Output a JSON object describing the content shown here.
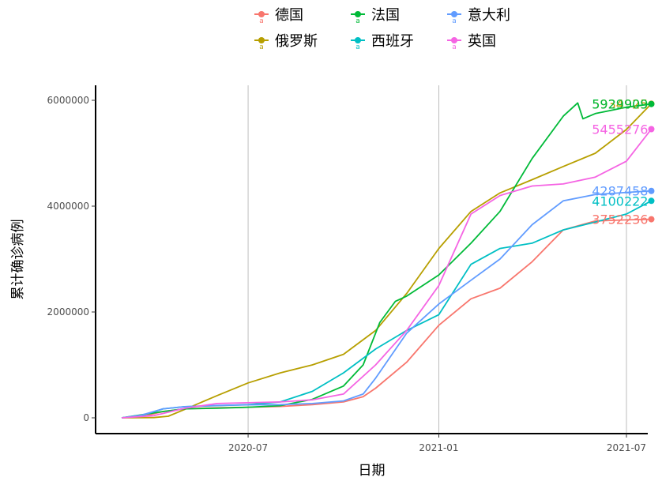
{
  "chart_data": {
    "type": "line",
    "xlabel": "日期",
    "ylabel": "累计确诊病例",
    "x_ticks": [
      "2020-07",
      "2021-01",
      "2021-07"
    ],
    "y_ticks": [
      "0",
      "2000000",
      "4000000",
      "6000000"
    ],
    "ylim": [
      -250000,
      6300000
    ],
    "grid": "vertical major lines only",
    "legend_position": "top",
    "series": [
      {
        "name": "德国",
        "color": "#F8766D",
        "end_label": "3752236",
        "points": [
          [
            "2020-03-01",
            0
          ],
          [
            "2020-03-20",
            20000
          ],
          [
            "2020-04-10",
            120000
          ],
          [
            "2020-05-01",
            170000
          ],
          [
            "2020-06-01",
            190000
          ],
          [
            "2020-07-01",
            200000
          ],
          [
            "2020-08-01",
            215000
          ],
          [
            "2020-09-01",
            250000
          ],
          [
            "2020-10-01",
            300000
          ],
          [
            "2020-10-20",
            400000
          ],
          [
            "2020-11-01",
            560000
          ],
          [
            "2020-12-01",
            1050000
          ],
          [
            "2021-01-01",
            1750000
          ],
          [
            "2021-02-01",
            2250000
          ],
          [
            "2021-03-01",
            2450000
          ],
          [
            "2021-04-01",
            2950000
          ],
          [
            "2021-05-01",
            3550000
          ],
          [
            "2021-06-01",
            3720000
          ],
          [
            "2021-07-01",
            3740000
          ],
          [
            "2021-07-25",
            3752236
          ]
        ]
      },
      {
        "name": "俄罗斯",
        "color": "#B79F00",
        "end_label": "5934925",
        "points": [
          [
            "2020-03-01",
            0
          ],
          [
            "2020-04-01",
            5000
          ],
          [
            "2020-04-15",
            30000
          ],
          [
            "2020-05-01",
            160000
          ],
          [
            "2020-06-01",
            420000
          ],
          [
            "2020-07-01",
            660000
          ],
          [
            "2020-08-01",
            850000
          ],
          [
            "2020-09-01",
            1000000
          ],
          [
            "2020-10-01",
            1200000
          ],
          [
            "2020-11-01",
            1650000
          ],
          [
            "2020-12-01",
            2350000
          ],
          [
            "2021-01-01",
            3200000
          ],
          [
            "2021-02-01",
            3900000
          ],
          [
            "2021-03-01",
            4250000
          ],
          [
            "2021-04-01",
            4500000
          ],
          [
            "2021-05-01",
            4750000
          ],
          [
            "2021-06-01",
            5000000
          ],
          [
            "2021-07-01",
            5450000
          ],
          [
            "2021-07-25",
            5934925
          ]
        ]
      },
      {
        "name": "法国",
        "color": "#00BA38",
        "end_label": "5929909",
        "points": [
          [
            "2020-03-01",
            0
          ],
          [
            "2020-04-10",
            120000
          ],
          [
            "2020-05-01",
            170000
          ],
          [
            "2020-06-01",
            180000
          ],
          [
            "2020-07-01",
            200000
          ],
          [
            "2020-08-01",
            230000
          ],
          [
            "2020-09-01",
            350000
          ],
          [
            "2020-10-01",
            600000
          ],
          [
            "2020-10-20",
            1000000
          ],
          [
            "2020-11-05",
            1800000
          ],
          [
            "2020-11-20",
            2200000
          ],
          [
            "2020-12-01",
            2300000
          ],
          [
            "2021-01-01",
            2700000
          ],
          [
            "2021-02-01",
            3300000
          ],
          [
            "2021-03-01",
            3900000
          ],
          [
            "2021-04-01",
            4900000
          ],
          [
            "2021-05-01",
            5700000
          ],
          [
            "2021-05-15",
            5950000
          ],
          [
            "2021-05-20",
            5650000
          ],
          [
            "2021-06-01",
            5750000
          ],
          [
            "2021-07-01",
            5870000
          ],
          [
            "2021-07-25",
            5929909
          ]
        ]
      },
      {
        "name": "西班牙",
        "color": "#00BFC4",
        "end_label": "4100222",
        "points": [
          [
            "2020-03-01",
            0
          ],
          [
            "2020-03-20",
            40000
          ],
          [
            "2020-04-10",
            170000
          ],
          [
            "2020-05-01",
            210000
          ],
          [
            "2020-06-01",
            230000
          ],
          [
            "2020-07-01",
            250000
          ],
          [
            "2020-08-01",
            300000
          ],
          [
            "2020-09-01",
            500000
          ],
          [
            "2020-10-01",
            850000
          ],
          [
            "2020-11-01",
            1300000
          ],
          [
            "2020-12-01",
            1650000
          ],
          [
            "2021-01-01",
            1950000
          ],
          [
            "2021-02-01",
            2900000
          ],
          [
            "2021-03-01",
            3200000
          ],
          [
            "2021-04-01",
            3300000
          ],
          [
            "2021-05-01",
            3550000
          ],
          [
            "2021-06-01",
            3700000
          ],
          [
            "2021-07-01",
            3850000
          ],
          [
            "2021-07-25",
            4100222
          ]
        ]
      },
      {
        "name": "意大利",
        "color": "#619CFF",
        "end_label": "4287458",
        "points": [
          [
            "2020-03-01",
            0
          ],
          [
            "2020-03-20",
            50000
          ],
          [
            "2020-04-10",
            170000
          ],
          [
            "2020-05-01",
            210000
          ],
          [
            "2020-06-01",
            235000
          ],
          [
            "2020-07-01",
            245000
          ],
          [
            "2020-08-01",
            250000
          ],
          [
            "2020-09-01",
            270000
          ],
          [
            "2020-10-01",
            320000
          ],
          [
            "2020-10-20",
            450000
          ],
          [
            "2020-11-01",
            750000
          ],
          [
            "2020-12-01",
            1600000
          ],
          [
            "2021-01-01",
            2150000
          ],
          [
            "2021-02-01",
            2600000
          ],
          [
            "2021-03-01",
            3000000
          ],
          [
            "2021-04-01",
            3650000
          ],
          [
            "2021-05-01",
            4100000
          ],
          [
            "2021-06-01",
            4220000
          ],
          [
            "2021-07-01",
            4260000
          ],
          [
            "2021-07-25",
            4287458
          ]
        ]
      },
      {
        "name": "英国",
        "color": "#F564E3",
        "end_label": "5455276",
        "points": [
          [
            "2020-03-01",
            0
          ],
          [
            "2020-04-01",
            40000
          ],
          [
            "2020-05-01",
            180000
          ],
          [
            "2020-06-01",
            270000
          ],
          [
            "2020-07-01",
            285000
          ],
          [
            "2020-08-01",
            300000
          ],
          [
            "2020-09-01",
            340000
          ],
          [
            "2020-10-01",
            450000
          ],
          [
            "2020-11-01",
            1000000
          ],
          [
            "2020-12-01",
            1650000
          ],
          [
            "2021-01-01",
            2500000
          ],
          [
            "2021-02-01",
            3850000
          ],
          [
            "2021-03-01",
            4200000
          ],
          [
            "2021-04-01",
            4380000
          ],
          [
            "2021-05-01",
            4420000
          ],
          [
            "2021-06-01",
            4550000
          ],
          [
            "2021-07-01",
            4850000
          ],
          [
            "2021-07-25",
            5455276
          ]
        ]
      }
    ]
  }
}
